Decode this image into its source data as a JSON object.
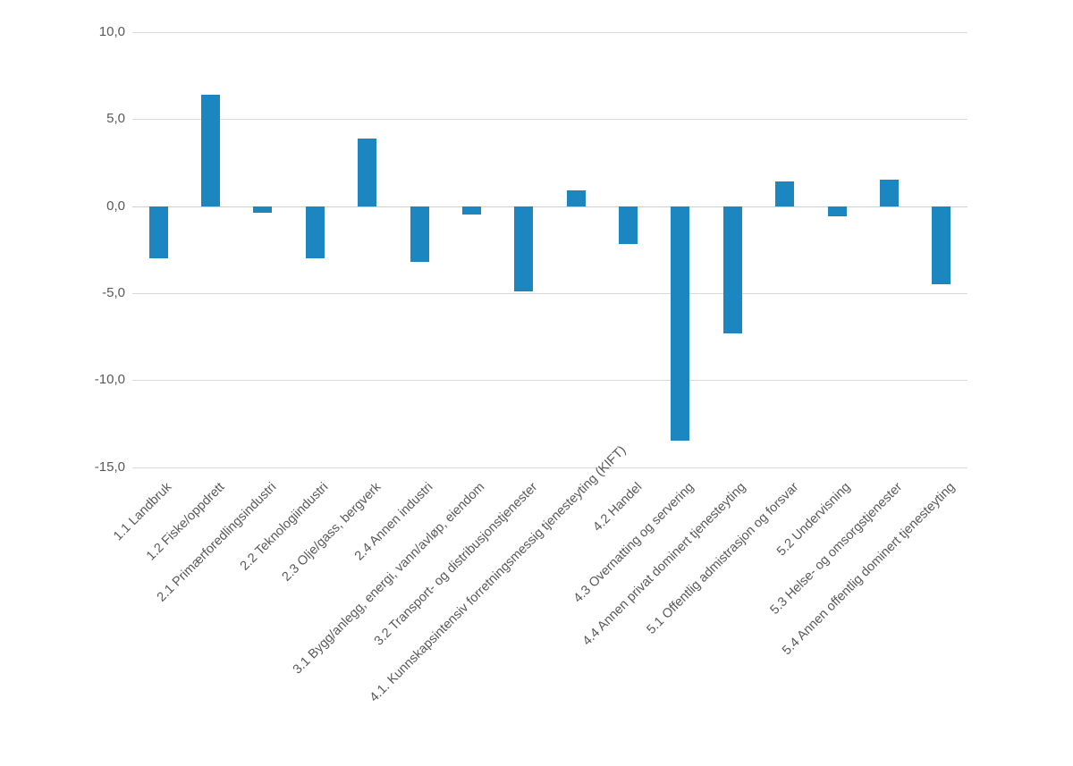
{
  "chart_style": {
    "bar_color": "#1b86c0",
    "gridline_color": "#d9d9d9",
    "zero_line_color": "#d0d0d0",
    "axis_text_color": "#595959",
    "background_color": "#ffffff"
  },
  "chart_data": {
    "type": "bar",
    "title": "",
    "xlabel": "",
    "ylabel": "",
    "legend": false,
    "grid": true,
    "ylim": [
      -15,
      10
    ],
    "y_ticks": [
      "10,0",
      "5,0",
      "0,0",
      "-5,0",
      "-10,0",
      "-15,0"
    ],
    "y_tick_values": [
      10,
      5,
      0,
      -5,
      -10,
      -15
    ],
    "categories": [
      "1.1 Landbruk",
      "1.2 Fiske/oppdrett",
      "2.1 Primærforedlingsindustri",
      "2.2 Teknologiindustri",
      "2.3 Olje/gass, bergverk",
      "2.4 Annen industri",
      "3.1 Bygg/anlegg, energi, vann/avløp, eiendom",
      "3.2 Transport- og distribusjonstjenester",
      "4.1. Kunnskapsintensiv forretningsmessig tjenesteyting (KIFT)",
      "4.2 Handel",
      "4.3 Overnatting og servering",
      "4.4 Annen privat dominert tjenesteyting",
      "5.1 Offentlig admistrasjon og forsvar",
      "5.2 Undervisning",
      "5.3 Helse- og omsorgstjenester",
      "5.4 Annen offentlig dominert tjenesteyting"
    ],
    "values": [
      -3.0,
      6.4,
      -0.4,
      -3.0,
      3.9,
      -3.2,
      -0.5,
      -4.9,
      0.9,
      -2.2,
      -13.5,
      -7.3,
      1.4,
      -0.6,
      1.5,
      -4.5
    ]
  }
}
